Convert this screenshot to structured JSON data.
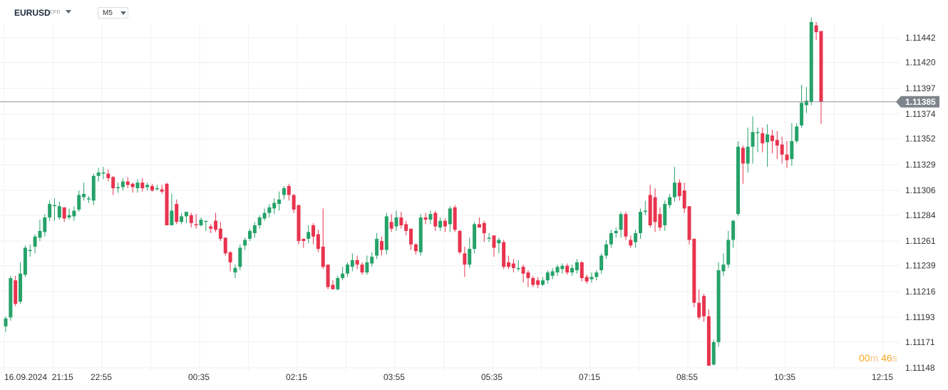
{
  "toolbar": {
    "symbol": "EURUSD",
    "symbol_tag": "CFD",
    "timeframe": "M5"
  },
  "countdown": {
    "minutes": "00",
    "minutes_unit": "m",
    "seconds": "46",
    "seconds_unit": "s"
  },
  "colors": {
    "up": "#26a269",
    "down": "#e8344e",
    "price_line": "#8a9096",
    "price_tag_bg": "#7d848b",
    "countdown": "#f5a623"
  },
  "chart_data": {
    "type": "candlestick",
    "instrument": "EURUSD",
    "timeframe": "M5",
    "current_price": "1.11385",
    "y_ticks": [
      "1.11442",
      "1.11420",
      "1.11397",
      "1.11374",
      "1.11352",
      "1.11329",
      "1.11306",
      "1.11284",
      "1.11261",
      "1.11239",
      "1.11216",
      "1.11193",
      "1.11171",
      "1.11148"
    ],
    "ylim": [
      1.1114,
      1.1147
    ],
    "x_ticks": [
      "16.09.2024  21:15",
      "22:55",
      "00:35",
      "02:15",
      "03:55",
      "05:35",
      "07:15",
      "08:55",
      "10:35",
      "12:15"
    ],
    "x_tick_bars": [
      0,
      20,
      40,
      60,
      80,
      100,
      120,
      140,
      160,
      180
    ],
    "grid": true,
    "candles": [
      [
        1.11185,
        1.11192,
        1.1118,
        1.11194
      ],
      [
        1.11193,
        1.11228,
        1.1119,
        1.1123
      ],
      [
        1.11226,
        1.11205,
        1.11203,
        1.1123
      ],
      [
        1.11207,
        1.11232,
        1.11205,
        1.11242
      ],
      [
        1.11231,
        1.11255,
        1.11229,
        1.11257
      ],
      [
        1.11253,
        1.11253,
        1.11247,
        1.11258
      ],
      [
        1.11256,
        1.11265,
        1.1125,
        1.11267
      ],
      [
        1.11264,
        1.1127,
        1.11261,
        1.1128
      ],
      [
        1.11269,
        1.11282,
        1.11265,
        1.11285
      ],
      [
        1.11282,
        1.11294,
        1.11279,
        1.11297
      ],
      [
        1.11293,
        1.11293,
        1.11279,
        1.11299
      ],
      [
        1.11282,
        1.11292,
        1.1128,
        1.11296
      ],
      [
        1.11291,
        1.11281,
        1.11278,
        1.11291
      ],
      [
        1.11282,
        1.11284,
        1.1128,
        1.1129
      ],
      [
        1.11283,
        1.11288,
        1.11279,
        1.11292
      ],
      [
        1.11289,
        1.11302,
        1.11287,
        1.11306
      ],
      [
        1.113,
        1.11303,
        1.11297,
        1.11313
      ],
      [
        1.11299,
        1.11299,
        1.11295,
        1.11301
      ],
      [
        1.11297,
        1.11319,
        1.11293,
        1.11321
      ],
      [
        1.11319,
        1.11322,
        1.11314,
        1.11326
      ],
      [
        1.11322,
        1.11322,
        1.11316,
        1.11327
      ],
      [
        1.11321,
        1.11317,
        1.11314,
        1.11325
      ],
      [
        1.11318,
        1.11308,
        1.11302,
        1.11319
      ],
      [
        1.11309,
        1.11309,
        1.11304,
        1.11313
      ],
      [
        1.11309,
        1.11314,
        1.11306,
        1.11317
      ],
      [
        1.11314,
        1.11311,
        1.11308,
        1.11318
      ],
      [
        1.11312,
        1.11309,
        1.11304,
        1.11313
      ],
      [
        1.11308,
        1.11313,
        1.11304,
        1.11316
      ],
      [
        1.11313,
        1.11308,
        1.11305,
        1.11317
      ],
      [
        1.11309,
        1.11311,
        1.11306,
        1.11313
      ],
      [
        1.1131,
        1.11306,
        1.11305,
        1.11312
      ],
      [
        1.11308,
        1.11308,
        1.11306,
        1.11311
      ],
      [
        1.11307,
        1.11305,
        1.11303,
        1.11311
      ],
      [
        1.11312,
        1.11275,
        1.11275,
        1.11313
      ],
      [
        1.11275,
        1.11288,
        1.11275,
        1.11303
      ],
      [
        1.11294,
        1.11278,
        1.11276,
        1.11298
      ],
      [
        1.11278,
        1.11283,
        1.11276,
        1.11286
      ],
      [
        1.11283,
        1.11287,
        1.11277,
        1.11287
      ],
      [
        1.11284,
        1.11277,
        1.11273,
        1.11286
      ],
      [
        1.11276,
        1.11275,
        1.11272,
        1.11285
      ],
      [
        1.11275,
        1.1128,
        1.11274,
        1.11282
      ],
      [
        1.11279,
        1.11279,
        1.1127,
        1.11279
      ],
      [
        1.11274,
        1.11272,
        1.11268,
        1.11276
      ],
      [
        1.11279,
        1.11271,
        1.11269,
        1.11286
      ],
      [
        1.11272,
        1.11263,
        1.11261,
        1.11278
      ],
      [
        1.11264,
        1.1125,
        1.11248,
        1.11264
      ],
      [
        1.11251,
        1.11242,
        1.11234,
        1.11252
      ],
      [
        1.11233,
        1.11237,
        1.11228,
        1.1124
      ],
      [
        1.11238,
        1.11255,
        1.11235,
        1.11258
      ],
      [
        1.11257,
        1.11262,
        1.11253,
        1.11264
      ],
      [
        1.11263,
        1.1127,
        1.11261,
        1.11272
      ],
      [
        1.11268,
        1.11275,
        1.11264,
        1.11278
      ],
      [
        1.11275,
        1.11282,
        1.11272,
        1.11284
      ],
      [
        1.11281,
        1.11286,
        1.11279,
        1.1129
      ],
      [
        1.11286,
        1.11291,
        1.11282,
        1.11294
      ],
      [
        1.1129,
        1.11295,
        1.11285,
        1.11299
      ],
      [
        1.11294,
        1.11298,
        1.11288,
        1.11305
      ],
      [
        1.11302,
        1.11308,
        1.11298,
        1.1131
      ],
      [
        1.1131,
        1.11302,
        1.11297,
        1.11312
      ],
      [
        1.11302,
        1.11289,
        1.11286,
        1.11303
      ],
      [
        1.11293,
        1.11261,
        1.11258,
        1.11293
      ],
      [
        1.11263,
        1.11261,
        1.11255,
        1.11263
      ],
      [
        1.11263,
        1.11269,
        1.11259,
        1.11275
      ],
      [
        1.11275,
        1.11265,
        1.11258,
        1.11277
      ],
      [
        1.11267,
        1.11254,
        1.11251,
        1.11271
      ],
      [
        1.11256,
        1.11238,
        1.11236,
        1.1129
      ],
      [
        1.1124,
        1.1122,
        1.11218,
        1.1124
      ],
      [
        1.11222,
        1.11218,
        1.11218,
        1.11226
      ],
      [
        1.11218,
        1.11228,
        1.11217,
        1.1123
      ],
      [
        1.11228,
        1.11232,
        1.11226,
        1.11238
      ],
      [
        1.11232,
        1.1124,
        1.11229,
        1.11242
      ],
      [
        1.11238,
        1.11244,
        1.11234,
        1.1125
      ],
      [
        1.11244,
        1.1124,
        1.11236,
        1.11248
      ],
      [
        1.1124,
        1.11233,
        1.11231,
        1.11242
      ],
      [
        1.11233,
        1.11242,
        1.11231,
        1.11248
      ],
      [
        1.11241,
        1.11247,
        1.11238,
        1.11251
      ],
      [
        1.11248,
        1.11263,
        1.11245,
        1.11268
      ],
      [
        1.11261,
        1.11253,
        1.11248,
        1.11265
      ],
      [
        1.11253,
        1.11283,
        1.11249,
        1.11286
      ],
      [
        1.11278,
        1.11272,
        1.11269,
        1.11285
      ],
      [
        1.11274,
        1.11282,
        1.1127,
        1.11288
      ],
      [
        1.11282,
        1.11275,
        1.11272,
        1.11287
      ],
      [
        1.11276,
        1.1127,
        1.11266,
        1.11279
      ],
      [
        1.11272,
        1.11258,
        1.11253,
        1.11272
      ],
      [
        1.11258,
        1.11252,
        1.11249,
        1.11259
      ],
      [
        1.11251,
        1.11282,
        1.11248,
        1.11285
      ],
      [
        1.11282,
        1.1128,
        1.11276,
        1.11286
      ],
      [
        1.1128,
        1.11285,
        1.11276,
        1.11288
      ],
      [
        1.11286,
        1.11274,
        1.1127,
        1.11288
      ],
      [
        1.11273,
        1.11279,
        1.1127,
        1.11282
      ],
      [
        1.11279,
        1.11274,
        1.11269,
        1.11281
      ],
      [
        1.11276,
        1.1129,
        1.11269,
        1.11292
      ],
      [
        1.11291,
        1.11271,
        1.11269,
        1.11293
      ],
      [
        1.1127,
        1.11251,
        1.11249,
        1.11271
      ],
      [
        1.1125,
        1.1124,
        1.11229,
        1.11256
      ],
      [
        1.1124,
        1.11254,
        1.11237,
        1.11264
      ],
      [
        1.11254,
        1.11276,
        1.1125,
        1.11278
      ],
      [
        1.11276,
        1.11273,
        1.11273,
        1.11282
      ],
      [
        1.11277,
        1.11268,
        1.1126,
        1.11279
      ],
      [
        1.11264,
        1.11264,
        1.1126,
        1.11268
      ],
      [
        1.11266,
        1.11255,
        1.11247,
        1.11265
      ],
      [
        1.11259,
        1.11262,
        1.1125,
        1.11264
      ],
      [
        1.1126,
        1.11238,
        1.11236,
        1.11262
      ],
      [
        1.11242,
        1.11238,
        1.11236,
        1.11248
      ],
      [
        1.11241,
        1.11237,
        1.11233,
        1.11245
      ],
      [
        1.11237,
        1.11237,
        1.11234,
        1.11244
      ],
      [
        1.11238,
        1.11232,
        1.11224,
        1.1124
      ],
      [
        1.11233,
        1.11228,
        1.1122,
        1.11235
      ],
      [
        1.11228,
        1.11222,
        1.1122,
        1.1123
      ],
      [
        1.11226,
        1.11222,
        1.11219,
        1.11229
      ],
      [
        1.11222,
        1.11226,
        1.11221,
        1.11229
      ],
      [
        1.11226,
        1.11233,
        1.11223,
        1.11235
      ],
      [
        1.1123,
        1.11234,
        1.11227,
        1.11237
      ],
      [
        1.11233,
        1.11238,
        1.1123,
        1.1124
      ],
      [
        1.11236,
        1.11239,
        1.11232,
        1.11241
      ],
      [
        1.11239,
        1.11233,
        1.11231,
        1.11241
      ],
      [
        1.11233,
        1.11237,
        1.1123,
        1.1124
      ],
      [
        1.11235,
        1.11242,
        1.11232,
        1.11245
      ],
      [
        1.11242,
        1.11228,
        1.11225,
        1.11243
      ],
      [
        1.11229,
        1.11225,
        1.11223,
        1.11231
      ],
      [
        1.11227,
        1.11229,
        1.11224,
        1.11233
      ],
      [
        1.11229,
        1.11233,
        1.11226,
        1.11235
      ],
      [
        1.11235,
        1.11248,
        1.11232,
        1.1125
      ],
      [
        1.11248,
        1.11258,
        1.11245,
        1.11262
      ],
      [
        1.11258,
        1.11268,
        1.11255,
        1.11271
      ],
      [
        1.11268,
        1.1127,
        1.11264,
        1.11273
      ],
      [
        1.11271,
        1.11285,
        1.11264,
        1.11287
      ],
      [
        1.11285,
        1.11265,
        1.11262,
        1.11287
      ],
      [
        1.11262,
        1.11257,
        1.11255,
        1.11266
      ],
      [
        1.1126,
        1.11268,
        1.11255,
        1.11271
      ],
      [
        1.11268,
        1.11287,
        1.11263,
        1.1129
      ],
      [
        1.11287,
        1.11288,
        1.11284,
        1.11297
      ],
      [
        1.11302,
        1.11275,
        1.11273,
        1.11311
      ],
      [
        1.113,
        1.11278,
        1.11269,
        1.11308
      ],
      [
        1.11285,
        1.11273,
        1.1127,
        1.11291
      ],
      [
        1.11275,
        1.11294,
        1.1127,
        1.11297
      ],
      [
        1.11293,
        1.113,
        1.1129,
        1.11303
      ],
      [
        1.113,
        1.11313,
        1.11296,
        1.11327
      ],
      [
        1.11313,
        1.11301,
        1.11297,
        1.11316
      ],
      [
        1.11306,
        1.1129,
        1.11286,
        1.11313
      ],
      [
        1.11292,
        1.11262,
        1.11258,
        1.11292
      ],
      [
        1.11263,
        1.11206,
        1.11202,
        1.11263
      ],
      [
        1.11206,
        1.11193,
        1.11191,
        1.11218
      ],
      [
        1.11212,
        1.11194,
        1.11189,
        1.11214
      ],
      [
        1.11194,
        1.1115,
        1.1115,
        1.112
      ],
      [
        1.11151,
        1.11171,
        1.1115,
        1.11173
      ],
      [
        1.11171,
        1.11235,
        1.11167,
        1.11242
      ],
      [
        1.11234,
        1.1124,
        1.1123,
        1.1125
      ],
      [
        1.1124,
        1.11262,
        1.11237,
        1.1127
      ],
      [
        1.11262,
        1.11279,
        1.11255,
        1.1128
      ],
      [
        1.11285,
        1.11345,
        1.11283,
        1.1135
      ],
      [
        1.11344,
        1.1133,
        1.11312,
        1.11346
      ],
      [
        1.1133,
        1.11345,
        1.11322,
        1.11362
      ],
      [
        1.11345,
        1.11358,
        1.1133,
        1.11372
      ],
      [
        1.11358,
        1.11358,
        1.1134,
        1.11362
      ],
      [
        1.11357,
        1.11348,
        1.1134,
        1.11362
      ],
      [
        1.11349,
        1.11356,
        1.11327,
        1.11365
      ],
      [
        1.11355,
        1.1135,
        1.11339,
        1.1136
      ],
      [
        1.11351,
        1.11346,
        1.11334,
        1.11359
      ],
      [
        1.11347,
        1.11338,
        1.1133,
        1.11354
      ],
      [
        1.11338,
        1.11333,
        1.11326,
        1.1135
      ],
      [
        1.11334,
        1.1135,
        1.11328,
        1.11366
      ],
      [
        1.1135,
        1.11363,
        1.11348,
        1.11366
      ],
      [
        1.11364,
        1.11384,
        1.11362,
        1.114
      ],
      [
        1.11382,
        1.11386,
        1.11375,
        1.11398
      ],
      [
        1.11385,
        1.11456,
        1.11382,
        1.1146
      ],
      [
        1.11453,
        1.11447,
        1.1144,
        1.11456
      ],
      [
        1.11448,
        1.11385,
        1.11365,
        1.11448
      ]
    ],
    "candle_format": "[open, close, low, high]"
  }
}
